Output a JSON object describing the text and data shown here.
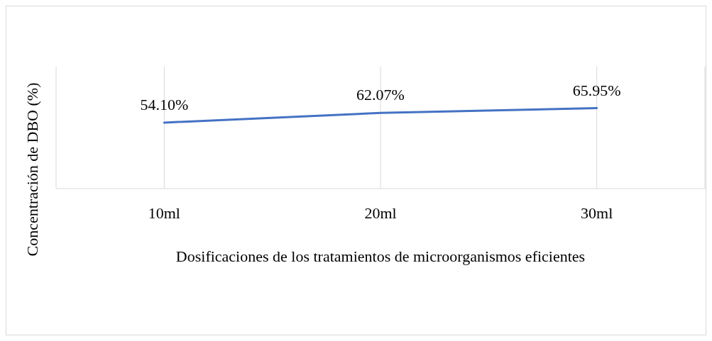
{
  "chart_data": {
    "type": "line",
    "xlabel": "Dosificaciones de los tratamientos de microorganismos eficientes",
    "ylabel": "Concentración de DBO  (%)",
    "categories": [
      "10ml",
      "20ml",
      "30ml"
    ],
    "series": [
      {
        "color": "#4472c4",
        "values": [
          54.1,
          62.07,
          65.95
        ],
        "value_labels": [
          "54.10%",
          "62.07%",
          "65.95%"
        ]
      }
    ],
    "ylim": [
      0,
      100
    ],
    "grid": "x",
    "marker": "none",
    "line_style": "solid",
    "tick_labels": "x"
  }
}
